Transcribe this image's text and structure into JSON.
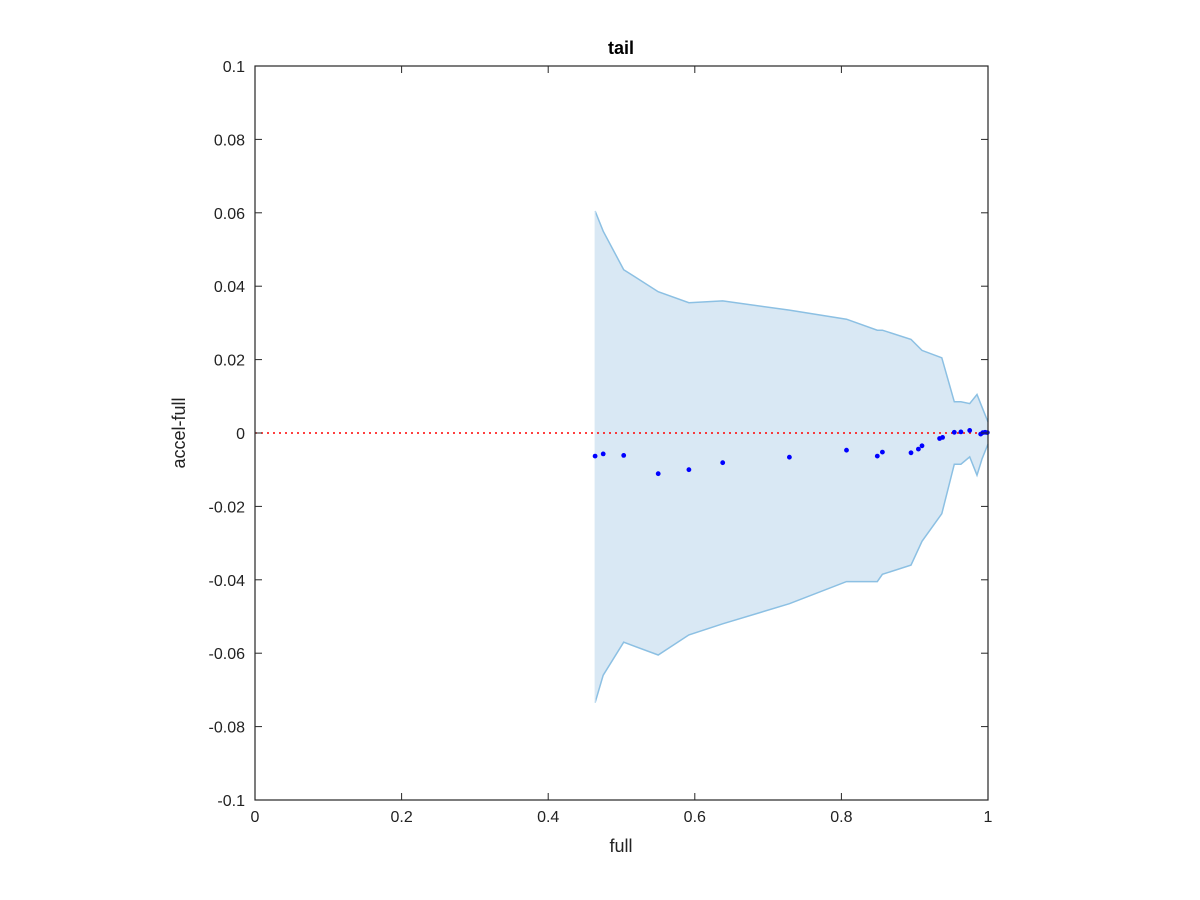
{
  "chart_data": {
    "type": "scatter",
    "title": "tail",
    "xlabel": "full",
    "ylabel": "accel-full",
    "xlim": [
      0,
      1
    ],
    "ylim": [
      -0.1,
      0.1
    ],
    "xticks": [
      0,
      0.2,
      0.4,
      0.6,
      0.8,
      1
    ],
    "xtick_labels": [
      "0",
      "0.2",
      "0.4",
      "0.6",
      "0.8",
      "1"
    ],
    "yticks": [
      -0.1,
      -0.08,
      -0.06,
      -0.04,
      -0.02,
      0,
      0.02,
      0.04,
      0.06,
      0.08,
      0.1
    ],
    "ytick_labels": [
      "-0.1",
      "-0.08",
      "-0.06",
      "-0.04",
      "-0.02",
      "0",
      "0.02",
      "0.04",
      "0.06",
      "0.08",
      "0.1"
    ],
    "grid": false,
    "reference_line": {
      "y": 0,
      "style": "dotted",
      "color": "#ff0000"
    },
    "band": {
      "color": "#d9e8f4",
      "edge_color": "#8cc0e3",
      "x": [
        0.464,
        0.475,
        0.503,
        0.55,
        0.592,
        0.638,
        0.729,
        0.807,
        0.849,
        0.856,
        0.895,
        0.91,
        0.937,
        0.954,
        0.963,
        0.975,
        0.985,
        0.992,
        0.997,
        1.0
      ],
      "upper": [
        0.0605,
        0.055,
        0.0445,
        0.0385,
        0.0355,
        0.036,
        0.0335,
        0.031,
        0.028,
        0.028,
        0.0255,
        0.0225,
        0.0205,
        0.0085,
        0.0085,
        0.008,
        0.0105,
        0.007,
        0.0045,
        0.003
      ],
      "lower": [
        -0.0735,
        -0.066,
        -0.057,
        -0.0605,
        -0.055,
        -0.052,
        -0.0465,
        -0.0405,
        -0.0405,
        -0.0385,
        -0.036,
        -0.0295,
        -0.022,
        -0.0085,
        -0.0085,
        -0.0065,
        -0.0115,
        -0.007,
        -0.0045,
        -0.003
      ]
    },
    "series": [
      {
        "color": "#0000ff",
        "points": [
          [
            0.464,
            -0.0063
          ],
          [
            0.475,
            -0.0057
          ],
          [
            0.503,
            -0.0061
          ],
          [
            0.55,
            -0.0111
          ],
          [
            0.592,
            -0.01
          ],
          [
            0.638,
            -0.0081
          ],
          [
            0.729,
            -0.0066
          ],
          [
            0.807,
            -0.0047
          ],
          [
            0.849,
            -0.0063
          ],
          [
            0.856,
            -0.0052
          ],
          [
            0.895,
            -0.0054
          ],
          [
            0.905,
            -0.0044
          ],
          [
            0.91,
            -0.0035
          ],
          [
            0.934,
            -0.0015
          ],
          [
            0.938,
            -0.0012
          ],
          [
            0.954,
            0.0002
          ],
          [
            0.963,
            0.0003
          ],
          [
            0.975,
            0.0007
          ],
          [
            0.99,
            -0.0003
          ],
          [
            0.993,
            0.0001
          ],
          [
            0.996,
            0.0002
          ],
          [
            0.999,
            0.0001
          ]
        ]
      }
    ]
  }
}
